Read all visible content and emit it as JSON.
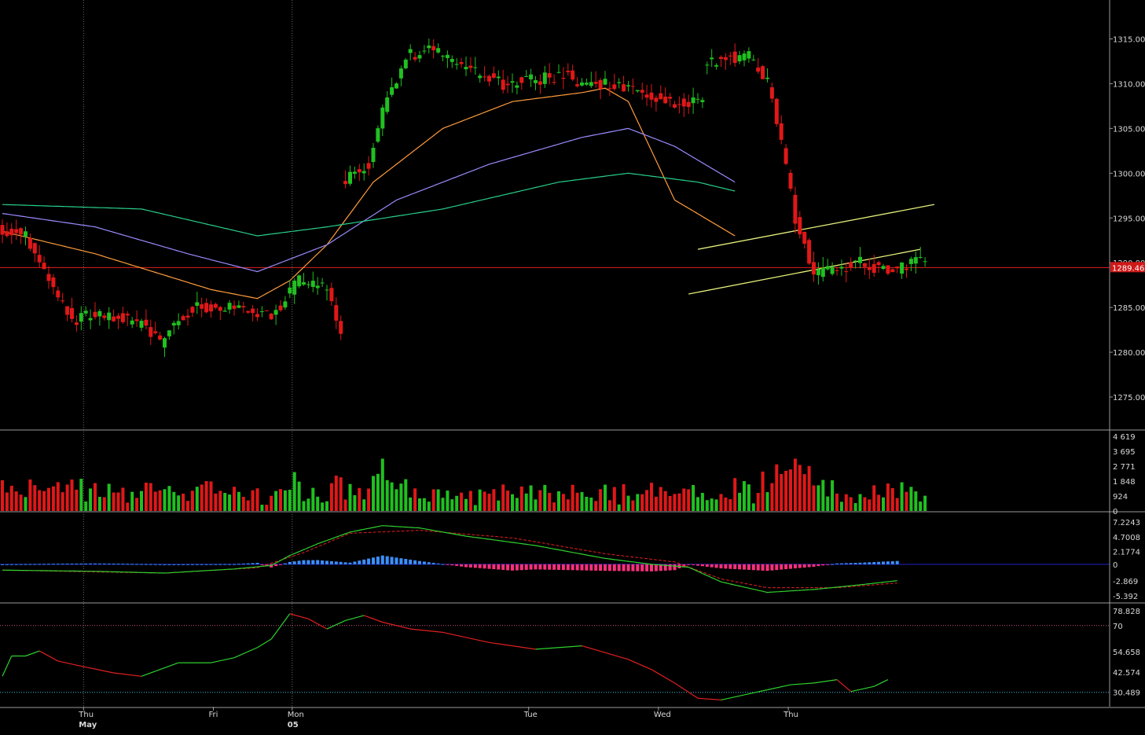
{
  "chart_data": [
    {
      "type": "candlestick",
      "panel": "price",
      "ylim": [
        1270.5,
        1319.5
      ],
      "y_ticks": [
        "1315.00",
        "1310.00",
        "1305.00",
        "1300.00",
        "1295.00",
        "1290.00",
        "1285.00",
        "1280.00",
        "1275.00"
      ],
      "current_price_label": "1289.46",
      "current_price": 1289.46,
      "bar_count": 200,
      "sessions": [
        {
          "label": "Thu",
          "start": 17,
          "open": 1294,
          "waypoints": [
            [
              0,
              1294
            ],
            [
              6,
              1293
            ],
            [
              14,
              1285
            ],
            [
              17,
              1283
            ]
          ]
        },
        {
          "label": "Fri",
          "start": 45,
          "open": 1284,
          "waypoints": [
            [
              0,
              1284
            ],
            [
              8,
              1284
            ],
            [
              15,
              1283
            ],
            [
              18,
              1281
            ],
            [
              22,
              1284
            ],
            [
              26,
              1285
            ],
            [
              35,
              1285
            ],
            [
              42,
              1284
            ],
            [
              48,
              1288
            ],
            [
              54,
              1287
            ],
            [
              57,
              1282
            ]
          ]
        },
        {
          "label": "Mon",
          "start": 51,
          "open": 1297,
          "waypoints": [
            [
              0,
              1299
            ],
            [
              6,
              1301
            ],
            [
              9,
              1307
            ],
            [
              14,
              1313
            ],
            [
              20,
              1314
            ],
            [
              25,
              1312
            ],
            [
              35,
              1310
            ],
            [
              50,
              1311
            ]
          ]
        },
        {
          "label": "Tue",
          "start": 28,
          "open": 1310,
          "waypoints": [
            [
              0,
              1310
            ],
            [
              8,
              1310
            ],
            [
              14,
              1309
            ],
            [
              20,
              1308
            ],
            [
              28,
              1308
            ]
          ]
        },
        {
          "label": "Wed",
          "start": 28,
          "open": 1312,
          "waypoints": [
            [
              0,
              1312
            ],
            [
              4,
              1313
            ],
            [
              10,
              1313
            ],
            [
              14,
              1310
            ],
            [
              16,
              1306
            ],
            [
              20,
              1295
            ],
            [
              24,
              1289
            ],
            [
              28,
              1289
            ]
          ]
        },
        {
          "label": "Thu",
          "start": 32,
          "open": 1289,
          "waypoints": [
            [
              0,
              1289
            ],
            [
              6,
              1290
            ],
            [
              12,
              1289
            ],
            [
              18,
              1290
            ],
            [
              24,
              1291
            ],
            [
              28,
              1289
            ],
            [
              32,
              1289.5
            ]
          ]
        }
      ],
      "moving_averages": [
        {
          "color": "#ff9c3c",
          "points": [
            [
              0,
              1293.5
            ],
            [
              20,
              1291
            ],
            [
              45,
              1287
            ],
            [
              55,
              1286
            ],
            [
              62,
              1288
            ],
            [
              70,
              1292
            ],
            [
              80,
              1299
            ],
            [
              95,
              1305
            ],
            [
              110,
              1308
            ],
            [
              125,
              1309
            ],
            [
              130,
              1309.5
            ],
            [
              135,
              1308
            ],
            [
              145,
              1297
            ],
            [
              158,
              1293
            ]
          ]
        },
        {
          "color": "#9a8cff",
          "points": [
            [
              0,
              1295.5
            ],
            [
              20,
              1294
            ],
            [
              40,
              1291
            ],
            [
              55,
              1289
            ],
            [
              70,
              1292
            ],
            [
              85,
              1297
            ],
            [
              105,
              1301
            ],
            [
              125,
              1304
            ],
            [
              135,
              1305
            ],
            [
              145,
              1303
            ],
            [
              158,
              1299
            ]
          ]
        },
        {
          "color": "#28d08a",
          "points": [
            [
              0,
              1296.5
            ],
            [
              30,
              1296
            ],
            [
              55,
              1293
            ],
            [
              70,
              1294
            ],
            [
              95,
              1296
            ],
            [
              120,
              1299
            ],
            [
              135,
              1300
            ],
            [
              150,
              1299
            ],
            [
              158,
              1298
            ]
          ]
        }
      ],
      "channel_lines": [
        {
          "color": "#e6f07a",
          "points": [
            [
              150,
              1291.5
            ],
            [
              201,
              1296.5
            ]
          ]
        },
        {
          "color": "#e6f07a",
          "points": [
            [
              148,
              1286.5
            ],
            [
              198,
              1291.5
            ]
          ]
        }
      ],
      "x_labels": [
        {
          "text": "Thu",
          "bold": false,
          "index": 17
        },
        {
          "text": "May",
          "bold": true,
          "index": 17
        },
        {
          "text": "Fri",
          "bold": false,
          "index": 45
        },
        {
          "text": "Mon",
          "bold": false,
          "index": 62
        },
        {
          "text": "05",
          "bold": true,
          "index": 62
        },
        {
          "text": "Tue",
          "bold": false,
          "index": 113
        },
        {
          "text": "Wed",
          "bold": false,
          "index": 141
        },
        {
          "text": "Thu",
          "bold": false,
          "index": 169
        }
      ]
    },
    {
      "type": "bar",
      "panel": "volume",
      "ylim": [
        0,
        4619
      ],
      "y_ticks": [
        "4 619",
        "3 695",
        "2 771",
        "1 848",
        "924",
        "0"
      ]
    },
    {
      "type": "macd",
      "panel": "macd",
      "ylim": [
        -5.392,
        7.2243
      ],
      "y_ticks": [
        "7.2243",
        "4.7008",
        "2.1774",
        "0",
        "-2.869",
        "-5.392"
      ],
      "macd_line": [
        [
          0,
          -1
        ],
        [
          20,
          -1.2
        ],
        [
          35,
          -1.5
        ],
        [
          50,
          -0.8
        ],
        [
          58,
          -0.2
        ],
        [
          62,
          1.5
        ],
        [
          68,
          3.5
        ],
        [
          75,
          5.5
        ],
        [
          82,
          6.6
        ],
        [
          90,
          6.2
        ],
        [
          100,
          4.8
        ],
        [
          115,
          3.2
        ],
        [
          130,
          1.0
        ],
        [
          140,
          0
        ],
        [
          148,
          -0.5
        ],
        [
          155,
          -3
        ],
        [
          165,
          -4.8
        ],
        [
          175,
          -4.3
        ],
        [
          185,
          -3.5
        ],
        [
          193,
          -2.8
        ]
      ],
      "signal_line": [
        [
          0,
          -1
        ],
        [
          20,
          -1.3
        ],
        [
          35,
          -1.5
        ],
        [
          55,
          -0.6
        ],
        [
          65,
          2.0
        ],
        [
          75,
          5.3
        ],
        [
          90,
          5.8
        ],
        [
          110,
          4.5
        ],
        [
          130,
          1.8
        ],
        [
          145,
          0.4
        ],
        [
          155,
          -2.5
        ],
        [
          165,
          -4
        ],
        [
          180,
          -4
        ],
        [
          193,
          -3.2
        ]
      ]
    },
    {
      "type": "line",
      "panel": "rsi",
      "ylim": [
        22,
        82
      ],
      "y_ticks": [
        "78.828",
        "70",
        "54.658",
        "42.574",
        "30.489"
      ],
      "overbought": 70,
      "oversold": 30.489,
      "points": [
        [
          0,
          40
        ],
        [
          2,
          52
        ],
        [
          5,
          52
        ],
        [
          8,
          55
        ],
        [
          12,
          49
        ],
        [
          17,
          46
        ],
        [
          24,
          42
        ],
        [
          30,
          40
        ],
        [
          38,
          48
        ],
        [
          45,
          48
        ],
        [
          50,
          51
        ],
        [
          55,
          57
        ],
        [
          58,
          62
        ],
        [
          62,
          77
        ],
        [
          66,
          74
        ],
        [
          70,
          68
        ],
        [
          74,
          73
        ],
        [
          78,
          76
        ],
        [
          82,
          72
        ],
        [
          88,
          68
        ],
        [
          95,
          66
        ],
        [
          105,
          60
        ],
        [
          115,
          56
        ],
        [
          125,
          58
        ],
        [
          135,
          50
        ],
        [
          140,
          44
        ],
        [
          145,
          36
        ],
        [
          150,
          27
        ],
        [
          155,
          26
        ],
        [
          160,
          29
        ],
        [
          165,
          32
        ],
        [
          170,
          35
        ],
        [
          175,
          36
        ],
        [
          180,
          38
        ],
        [
          183,
          31
        ],
        [
          188,
          34
        ],
        [
          191,
          38
        ]
      ]
    }
  ],
  "colors": {
    "up": "#20c020",
    "down": "#e01818",
    "background": "#000000",
    "grid": "#6a6a6a",
    "border": "#9a9a9a",
    "price_line": "#e02020",
    "macd": "#2ed02e",
    "signal": "#e02020",
    "hist_pos": "#3b90ff",
    "hist_neg": "#ff2f7c",
    "zero_line": "#2020c0",
    "rsi_up": "#2ed02e",
    "rsi_down": "#e02020",
    "ob_line": "#d0508a",
    "os_line": "#40c0e0"
  }
}
